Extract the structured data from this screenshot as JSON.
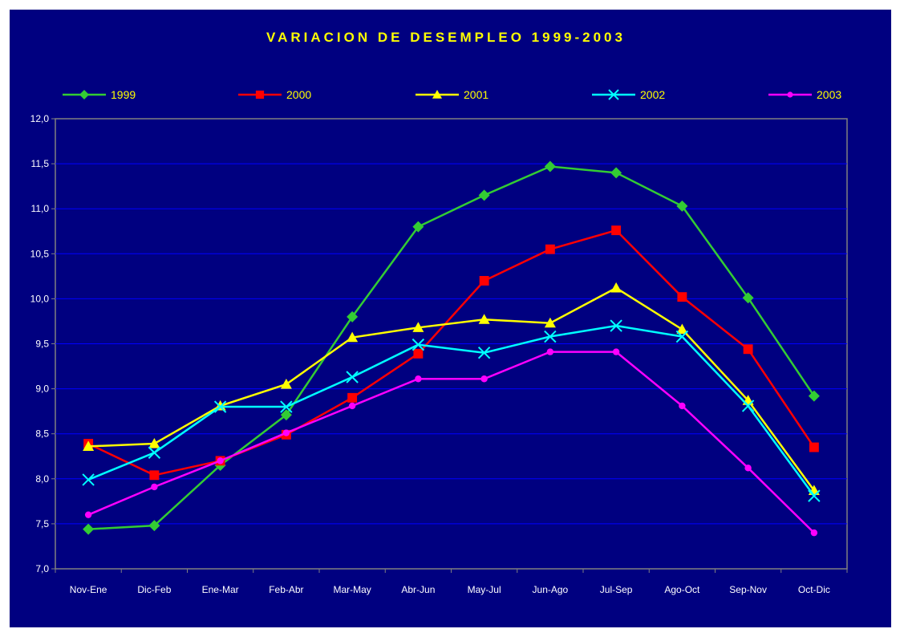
{
  "chart_data": {
    "type": "line",
    "title": "VARIACION DE DESEMPLEO 1999-2003",
    "xlabel": "",
    "ylabel": "",
    "categories": [
      "Nov-Ene",
      "Dic-Feb",
      "Ene-Mar",
      "Feb-Abr",
      "Mar-May",
      "Abr-Jun",
      "May-Jul",
      "Jun-Ago",
      "Jul-Sep",
      "Ago-Oct",
      "Sep-Nov",
      "Oct-Dic"
    ],
    "ylim": [
      7.0,
      12.0
    ],
    "yticks": [
      "7,0",
      "7,5",
      "8,0",
      "8,5",
      "9,0",
      "9,5",
      "10,0",
      "10,5",
      "11,0",
      "11,5",
      "12,0"
    ],
    "grid": true,
    "legend_position": "top",
    "series": [
      {
        "name": "1999",
        "color": "#33cc33",
        "marker": "diamond",
        "values": [
          7.44,
          7.48,
          8.15,
          8.71,
          9.8,
          10.8,
          11.15,
          11.47,
          11.4,
          11.03,
          10.01,
          8.92
        ]
      },
      {
        "name": "2000",
        "color": "#ff0000",
        "marker": "square",
        "values": [
          8.39,
          8.04,
          8.2,
          8.49,
          8.9,
          9.39,
          10.2,
          10.55,
          10.76,
          10.02,
          9.44,
          8.35
        ]
      },
      {
        "name": "2001",
        "color": "#ffff00",
        "marker": "triangle",
        "values": [
          8.36,
          8.39,
          8.81,
          9.05,
          9.57,
          9.68,
          9.77,
          9.73,
          10.12,
          9.66,
          8.87,
          7.87
        ]
      },
      {
        "name": "2002",
        "color": "#00ffff",
        "marker": "x",
        "values": [
          7.99,
          8.29,
          8.8,
          8.8,
          9.13,
          9.49,
          9.4,
          9.58,
          9.7,
          9.58,
          8.81,
          7.81
        ]
      },
      {
        "name": "2003",
        "color": "#ff00ff",
        "marker": "circle",
        "values": [
          7.6,
          7.91,
          8.2,
          8.51,
          8.81,
          9.11,
          9.11,
          9.41,
          9.41,
          8.81,
          8.12,
          7.4
        ]
      }
    ]
  }
}
